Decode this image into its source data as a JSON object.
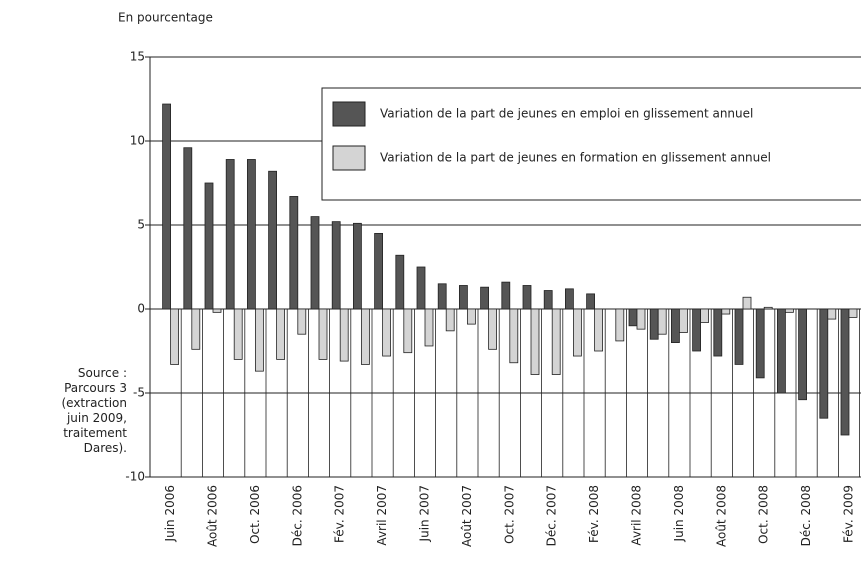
{
  "chart_data": {
    "type": "bar",
    "y_label": "En pourcentage",
    "source": "Source : Parcours 3 (extraction juin 2009, traitement Dares).",
    "categories": [
      "Juin 2006",
      null,
      "Août 2006",
      null,
      "Oct. 2006",
      null,
      "Déc. 2006",
      null,
      "Fév. 2007",
      null,
      "Avril 2007",
      null,
      "Juin 2007",
      null,
      "Août 2007",
      null,
      "Oct. 2007",
      null,
      "Déc. 2007",
      null,
      "Fév. 2008",
      null,
      "Avril 2008",
      null,
      "Juin 2008",
      null,
      "Août 2008",
      null,
      "Oct. 2008",
      null,
      "Déc. 2008",
      null,
      "Fév. 2009"
    ],
    "series": [
      {
        "name": "Variation de la part de jeunes en emploi en glissement annuel",
        "color": "#555555",
        "values": [
          12.2,
          9.6,
          7.5,
          8.9,
          8.9,
          8.2,
          6.7,
          5.5,
          5.2,
          5.1,
          4.5,
          3.2,
          2.5,
          1.5,
          1.4,
          1.3,
          1.6,
          1.4,
          1.1,
          1.2,
          0.9,
          0,
          -1.0,
          -1.8,
          -2.0,
          -2.5,
          -2.8,
          -3.3,
          -4.1,
          -5.0,
          -5.4,
          -6.5,
          -7.5
        ]
      },
      {
        "name": "Variation de la part de jeunes en formation en glissement annuel",
        "color": "#d4d4d4",
        "values": [
          -3.3,
          -2.4,
          -0.2,
          -3.0,
          -3.7,
          -3.0,
          -1.5,
          -3.0,
          -3.1,
          -3.3,
          -2.8,
          -2.6,
          -2.2,
          -1.3,
          -0.9,
          -2.4,
          -3.2,
          -3.9,
          -3.9,
          -2.8,
          -2.5,
          -1.9,
          -1.2,
          -1.5,
          -1.4,
          -0.8,
          -0.3,
          0.7,
          0.1,
          -0.2,
          0,
          -0.6,
          -0.5
        ]
      }
    ],
    "ylim": [
      -10,
      15
    ],
    "yticks": [
      -10,
      -5,
      0,
      5,
      10,
      15
    ],
    "grid": true
  }
}
